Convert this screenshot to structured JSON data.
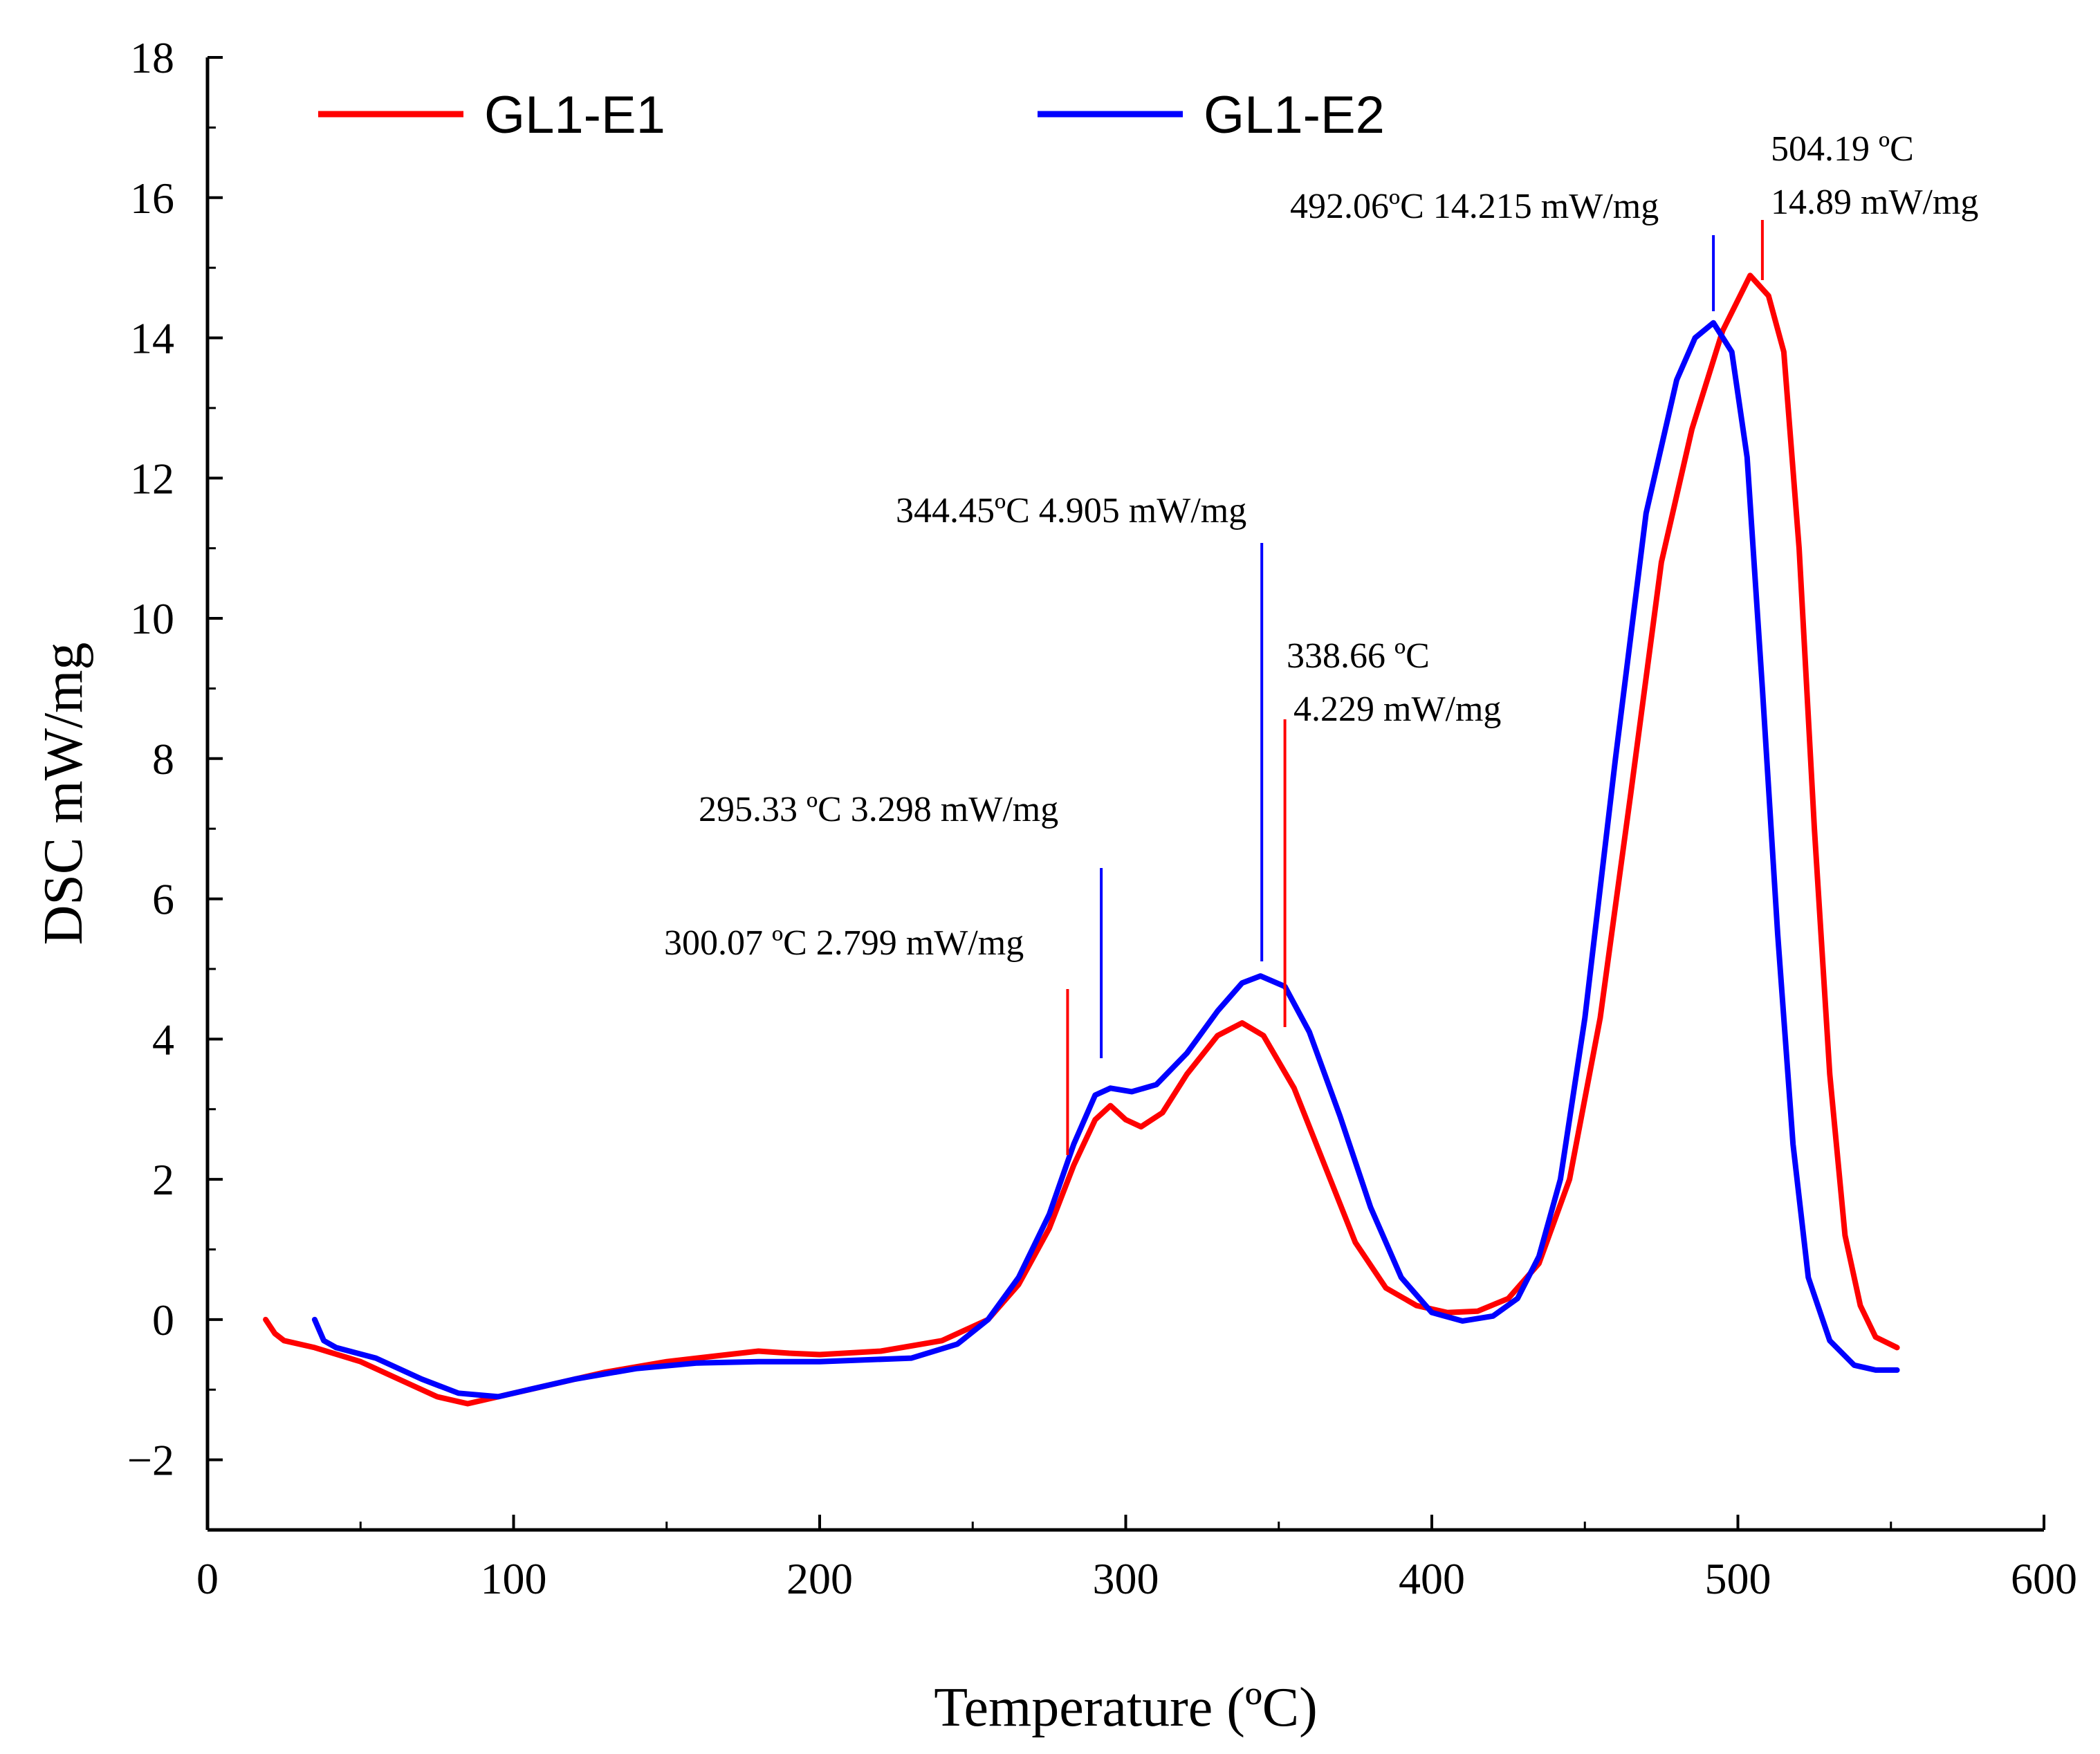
{
  "chart_data": {
    "type": "line",
    "xlabel": "Temperature (ºC)",
    "ylabel": "DSC mW/mg",
    "xlim": [
      0,
      600
    ],
    "ylim": [
      -3,
      18
    ],
    "xticks": [
      0,
      100,
      200,
      300,
      400,
      500,
      600
    ],
    "yticks": [
      -2,
      0,
      2,
      4,
      6,
      8,
      10,
      12,
      14,
      16,
      18
    ],
    "ytick_labels": [
      "−2",
      "0",
      "2",
      "4",
      "6",
      "8",
      "10",
      "12",
      "14",
      "16",
      "18"
    ],
    "grid": false,
    "legend_position": "top",
    "series": [
      {
        "name": "GL1-E1",
        "color": "#ff0000",
        "points": [
          [
            19,
            0.0
          ],
          [
            22,
            -0.2
          ],
          [
            25,
            -0.3
          ],
          [
            35,
            -0.4
          ],
          [
            50,
            -0.6
          ],
          [
            65,
            -0.9
          ],
          [
            75,
            -1.1
          ],
          [
            85,
            -1.2
          ],
          [
            95,
            -1.1
          ],
          [
            110,
            -0.95
          ],
          [
            130,
            -0.75
          ],
          [
            150,
            -0.6
          ],
          [
            170,
            -0.5
          ],
          [
            180,
            -0.45
          ],
          [
            190,
            -0.48
          ],
          [
            200,
            -0.5
          ],
          [
            220,
            -0.45
          ],
          [
            240,
            -0.3
          ],
          [
            255,
            0.0
          ],
          [
            265,
            0.5
          ],
          [
            275,
            1.3
          ],
          [
            283,
            2.2
          ],
          [
            290,
            2.85
          ],
          [
            295,
            3.05
          ],
          [
            300,
            2.85
          ],
          [
            305,
            2.75
          ],
          [
            312,
            2.95
          ],
          [
            320,
            3.5
          ],
          [
            330,
            4.05
          ],
          [
            338,
            4.23
          ],
          [
            345,
            4.05
          ],
          [
            355,
            3.3
          ],
          [
            365,
            2.2
          ],
          [
            375,
            1.1
          ],
          [
            385,
            0.45
          ],
          [
            395,
            0.2
          ],
          [
            405,
            0.1
          ],
          [
            415,
            0.12
          ],
          [
            425,
            0.3
          ],
          [
            435,
            0.8
          ],
          [
            445,
            2.0
          ],
          [
            455,
            4.3
          ],
          [
            465,
            7.5
          ],
          [
            475,
            10.8
          ],
          [
            485,
            12.7
          ],
          [
            495,
            14.1
          ],
          [
            504,
            14.89
          ],
          [
            510,
            14.6
          ],
          [
            515,
            13.8
          ],
          [
            520,
            11.0
          ],
          [
            525,
            7.0
          ],
          [
            530,
            3.5
          ],
          [
            535,
            1.2
          ],
          [
            540,
            0.2
          ],
          [
            545,
            -0.25
          ],
          [
            552,
            -0.4
          ]
        ]
      },
      {
        "name": "GL1-E2",
        "color": "#0000ff",
        "points": [
          [
            35,
            0.0
          ],
          [
            38,
            -0.3
          ],
          [
            42,
            -0.4
          ],
          [
            55,
            -0.55
          ],
          [
            70,
            -0.85
          ],
          [
            82,
            -1.05
          ],
          [
            95,
            -1.1
          ],
          [
            105,
            -1.0
          ],
          [
            120,
            -0.85
          ],
          [
            140,
            -0.7
          ],
          [
            160,
            -0.62
          ],
          [
            180,
            -0.6
          ],
          [
            200,
            -0.6
          ],
          [
            230,
            -0.55
          ],
          [
            245,
            -0.35
          ],
          [
            255,
            0.0
          ],
          [
            265,
            0.6
          ],
          [
            275,
            1.5
          ],
          [
            283,
            2.5
          ],
          [
            290,
            3.2
          ],
          [
            295,
            3.3
          ],
          [
            302,
            3.25
          ],
          [
            310,
            3.35
          ],
          [
            320,
            3.8
          ],
          [
            330,
            4.4
          ],
          [
            338,
            4.8
          ],
          [
            344,
            4.9
          ],
          [
            352,
            4.75
          ],
          [
            360,
            4.1
          ],
          [
            370,
            2.9
          ],
          [
            380,
            1.6
          ],
          [
            390,
            0.6
          ],
          [
            400,
            0.1
          ],
          [
            410,
            -0.02
          ],
          [
            420,
            0.05
          ],
          [
            428,
            0.3
          ],
          [
            435,
            0.9
          ],
          [
            442,
            2.0
          ],
          [
            450,
            4.3
          ],
          [
            460,
            8.0
          ],
          [
            470,
            11.5
          ],
          [
            480,
            13.4
          ],
          [
            486,
            14.0
          ],
          [
            492,
            14.215
          ],
          [
            498,
            13.8
          ],
          [
            503,
            12.3
          ],
          [
            508,
            9.0
          ],
          [
            513,
            5.5
          ],
          [
            518,
            2.5
          ],
          [
            523,
            0.6
          ],
          [
            530,
            -0.3
          ],
          [
            538,
            -0.65
          ],
          [
            545,
            -0.72
          ],
          [
            552,
            -0.72
          ]
        ]
      }
    ],
    "annotations": [
      {
        "lines": [
          "492.06ºC  14.215 mW/mg"
        ],
        "x": 492.06,
        "y": 14.215,
        "color": "#0000ff"
      },
      {
        "lines": [
          "504.19 ºC",
          "14.89 mW/mg"
        ],
        "x": 504.19,
        "y": 14.89,
        "color": "#ff0000"
      },
      {
        "lines": [
          "344.45ºC  4.905 mW/mg"
        ],
        "x": 344.45,
        "y": 4.905,
        "color": "#0000ff"
      },
      {
        "lines": [
          "338.66 ºC",
          "4.229 mW/mg"
        ],
        "x": 338.66,
        "y": 4.229,
        "color": "#ff0000"
      },
      {
        "lines": [
          "295.33 ºC  3.298 mW/mg"
        ],
        "x": 295.33,
        "y": 3.298,
        "color": "#0000ff"
      },
      {
        "lines": [
          "300.07 ºC  2.799 mW/mg"
        ],
        "x": 300.07,
        "y": 2.799,
        "color": "#ff0000"
      }
    ]
  }
}
